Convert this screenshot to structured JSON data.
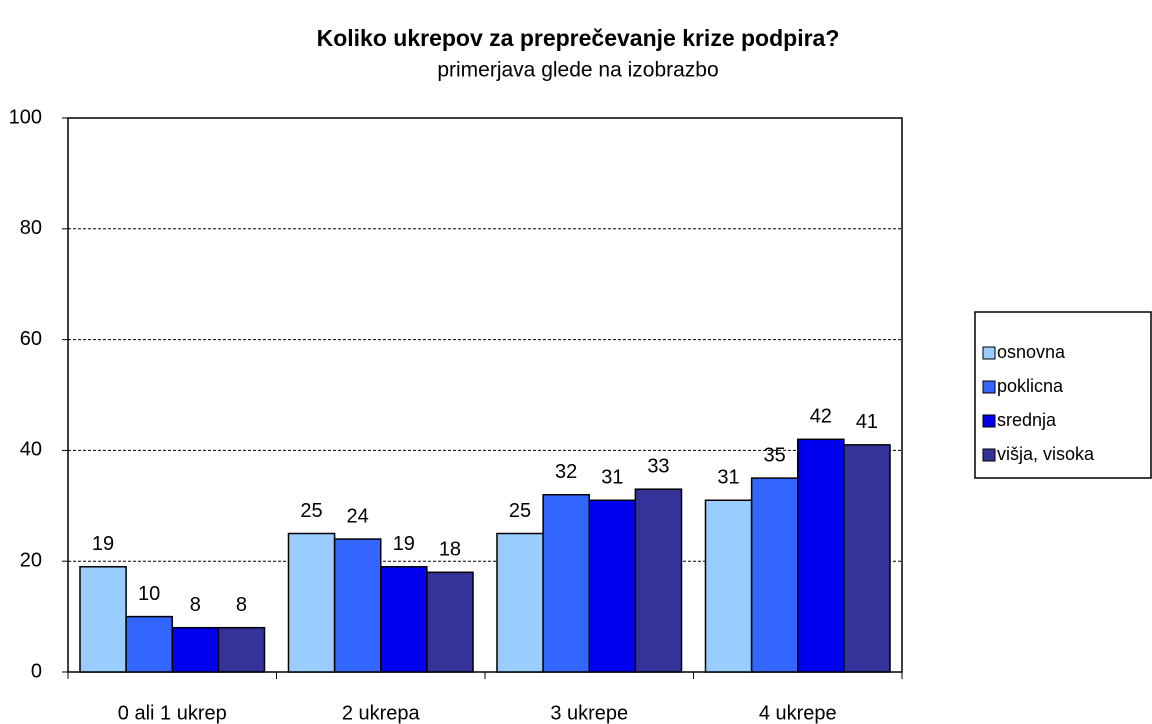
{
  "chart_data": {
    "type": "bar",
    "title": "Koliko ukrepov za preprečevanje krize podpira?",
    "subtitle": "primerjava glede na izobrazbo",
    "categories": [
      "0 ali 1 ukrep",
      "2 ukrepa",
      "3 ukrepe",
      "4 ukrepe"
    ],
    "series": [
      {
        "name": "osnovna",
        "color": "#99ccff",
        "values": [
          19,
          25,
          25,
          31
        ]
      },
      {
        "name": "poklicna",
        "color": "#3366ff",
        "values": [
          10,
          24,
          32,
          35
        ]
      },
      {
        "name": "srednja",
        "color": "#0000ee",
        "values": [
          8,
          19,
          31,
          42
        ]
      },
      {
        "name": "višja, visoka",
        "color": "#333399",
        "values": [
          8,
          18,
          33,
          41
        ]
      }
    ],
    "ylim": [
      0,
      100
    ],
    "yticks": [
      0,
      20,
      40,
      60,
      80,
      100
    ],
    "grid": true,
    "legend": "right"
  }
}
